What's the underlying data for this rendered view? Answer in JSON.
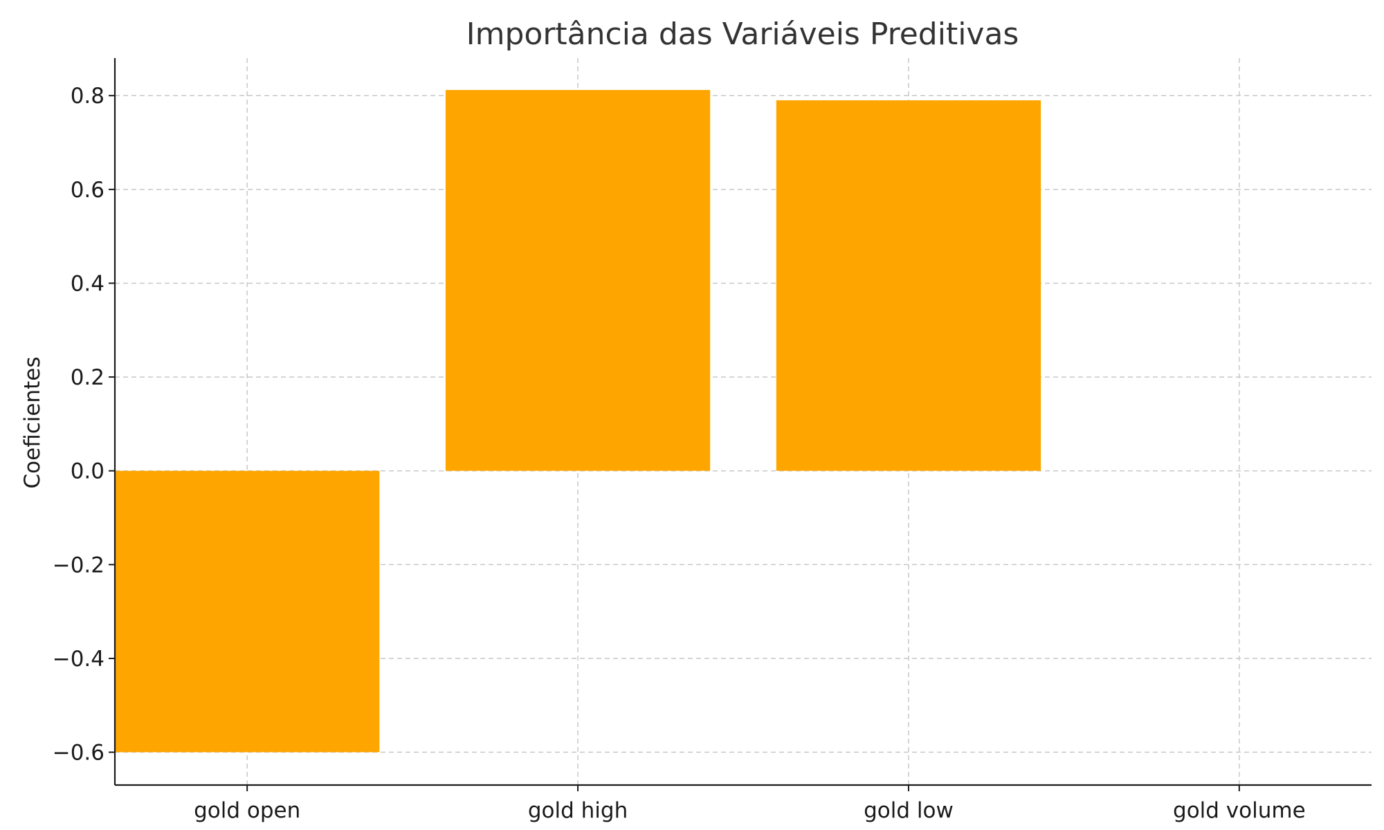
{
  "chart_data": {
    "type": "bar",
    "title": "Importância das Variáveis Preditivas",
    "xlabel": "",
    "ylabel": "Coeficientes",
    "categories": [
      "gold open",
      "gold high",
      "gold low",
      "gold volume"
    ],
    "values": [
      -0.6,
      0.812,
      0.79,
      0.0
    ],
    "ylim": [
      -0.67,
      0.88
    ],
    "yticks": [
      -0.6,
      -0.4,
      -0.2,
      0.0,
      0.2,
      0.4,
      0.6,
      0.8
    ],
    "ytick_labels": [
      "−0.6",
      "−0.4",
      "−0.2",
      "0.0",
      "0.2",
      "0.4",
      "0.6",
      "0.8"
    ],
    "bar_color": "#FFA500",
    "grid": true,
    "legend": "none"
  }
}
